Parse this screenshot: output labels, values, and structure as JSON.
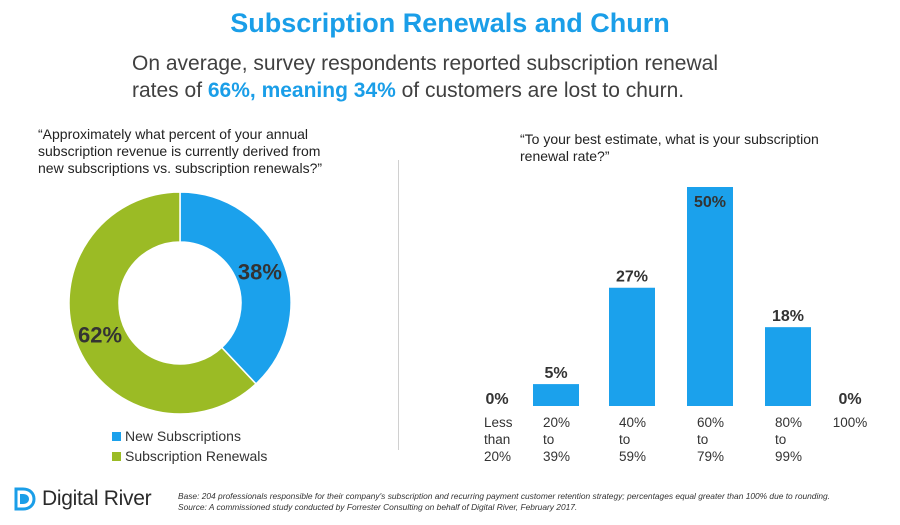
{
  "header": {
    "title": "Subscription Renewals and Churn",
    "subtitle_line1": "On average, survey respondents reported subscription renewal",
    "subtitle_line2_a": "rates of ",
    "subtitle_line2_b": "66%",
    "subtitle_line2_c": ", meaning ",
    "subtitle_line2_d": "34%",
    "subtitle_line2_e": " of customers are lost to churn."
  },
  "chart_data": [
    {
      "type": "pie",
      "question_lines": [
        "“Approximately what percent of your annual",
        "subscription revenue is currently derived from",
        "new subscriptions vs. subscription renewals?”"
      ],
      "slices": [
        {
          "name": "New Subscriptions",
          "value": 38,
          "label": "38%",
          "color": "#1ba1ec"
        },
        {
          "name": "Subscription Renewals",
          "value": 62,
          "label": "62%",
          "color": "#9bbb25"
        }
      ],
      "legend_position": "bottom"
    },
    {
      "type": "bar",
      "question_lines": [
        "“To your best estimate, what is your subscription",
        "renewal rate?”"
      ],
      "categories": [
        [
          "Less",
          "than",
          "20%"
        ],
        [
          "20%",
          "to",
          "39%"
        ],
        [
          "40%",
          "to",
          "59%"
        ],
        [
          "60%",
          "to",
          "79%"
        ],
        [
          "80%",
          "to",
          "99%"
        ],
        [
          "100%"
        ]
      ],
      "values": [
        0,
        5,
        27,
        50,
        18,
        0
      ],
      "value_labels": [
        "0%",
        "5%",
        "27%",
        "50%",
        "18%",
        "0%"
      ],
      "ylim": [
        0,
        50
      ],
      "color": "#1ba1ec",
      "grid": false
    }
  ],
  "footer": {
    "logo_text": "Digital River",
    "base_note": "Base: 204 professionals responsible for their company's subscription and recurring payment customer retention strategy; percentages equal greater than 100% due to rounding.",
    "source_note": "Source: A commissioned study conducted by Forrester Consulting on behalf of Digital River, February 2017.",
    "logo_color": "#1a9ee8"
  }
}
